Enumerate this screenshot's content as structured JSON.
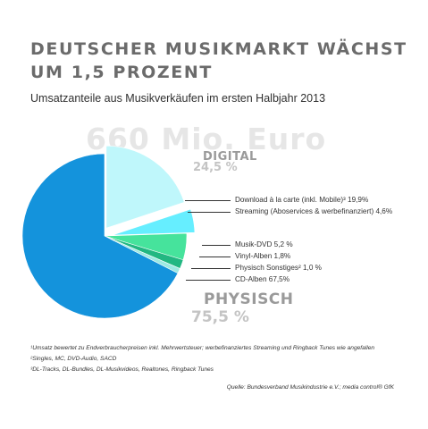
{
  "header": {
    "title_line1": "DEUTSCHER MUSIKMARKT WÄCHST",
    "title_line2": "UM 1,5 PROZENT",
    "subtitle": "Umsatzanteile aus Musikverkäufen im ersten Halbjahr 2013"
  },
  "total_label": "660 Mio. Euro",
  "groups": {
    "digital": {
      "name": "DIGITAL",
      "value": "24,5 %"
    },
    "physisch": {
      "name": "PHYSISCH",
      "value": "75,5 %"
    }
  },
  "legend": [
    {
      "label": "Download à la carte (inkl. Mobile)³ 19,9%"
    },
    {
      "label": "Streaming (Aboservices & werbefinanziert) 4,6%"
    },
    {
      "label": "Musik-DVD 5,2 %"
    },
    {
      "label": "Vinyl-Alben 1,8%"
    },
    {
      "label": "Physisch Sonstiges² 1,0 %"
    },
    {
      "label": "CD-Alben 67,5%"
    }
  ],
  "chart_data": {
    "type": "pie",
    "title": "DEUTSCHER MUSIKMARKT WÄCHST UM 1,5 PROZENT",
    "subtitle": "Umsatzanteile aus Musikverkäufen im ersten Halbjahr 2013",
    "slices": [
      {
        "name": "Download à la carte (inkl. Mobile)",
        "value": 19.9,
        "group": "Digital",
        "color": "#bff7fb",
        "exploded": true
      },
      {
        "name": "Streaming (Aboservices & werbefinanziert)",
        "value": 4.6,
        "group": "Digital",
        "color": "#66eeff",
        "exploded": true
      },
      {
        "name": "Musik-DVD",
        "value": 5.2,
        "group": "Physisch",
        "color": "#46e39c",
        "exploded": false
      },
      {
        "name": "Vinyl-Alben",
        "value": 1.8,
        "group": "Physisch",
        "color": "#22b782",
        "exploded": false
      },
      {
        "name": "Physisch Sonstiges",
        "value": 1.0,
        "group": "Physisch",
        "color": "#9de9e2",
        "exploded": false
      },
      {
        "name": "CD-Alben",
        "value": 67.5,
        "group": "Physisch",
        "color": "#1493dc",
        "exploded": false
      }
    ],
    "groups": [
      {
        "name": "DIGITAL",
        "value": 24.5
      },
      {
        "name": "PHYSISCH",
        "value": 75.5
      }
    ],
    "total": "660 Mio. Euro"
  },
  "footnotes": [
    "¹Umsatz bewertet zu Endverbraucherpreisen inkl. Mehrwertsteuer; werbefinanziertes Streaming und Ringback Tunes wie angefallen",
    "²Singles, MC, DVD-Audio, SACD",
    "³DL-Tracks, DL-Bundles, DL-Musikvideos, Realtones, Ringback Tunes"
  ],
  "source": "Quelle: Bundesverband Musikindustrie e.V.; media control® GfK"
}
